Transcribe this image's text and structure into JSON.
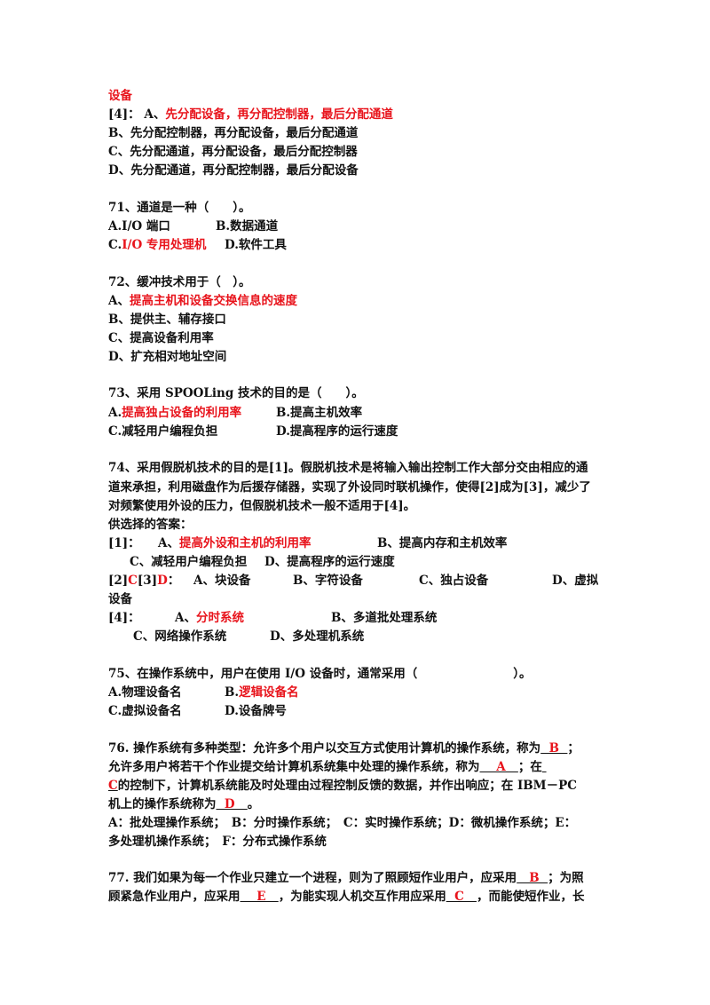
{
  "document": {
    "lines": [
      [
        {
          "t": "设备",
          "red": true
        }
      ],
      [
        {
          "t": "[4]：  A、"
        },
        {
          "t": "先分配设备，再分配控制器，最后分配通道",
          "red": true
        }
      ],
      [
        {
          "t": "B、先分配控制器，再分配设备，最后分配通道"
        }
      ],
      [
        {
          "t": "C、先分配通道，再分配设备，最后分配控制器"
        }
      ],
      [
        {
          "t": "D、先分配通道，再分配控制器，最后分配设备"
        }
      ],
      [
        {
          "t": "71、通道是一种（　　）。"
        }
      ],
      [
        {
          "t": "A.I/O 端口"
        },
        {
          "t": "B.数据通道"
        }
      ],
      [
        {
          "t": "C."
        },
        {
          "t": "I/O 专用处理机",
          "red": true
        },
        {
          "t": "D.软件工具"
        }
      ],
      [
        {
          "t": "72、缓冲技术用于（　）。"
        }
      ],
      [
        {
          "t": "A、"
        },
        {
          "t": "提高主机和设备交换信息的速度",
          "red": true
        }
      ],
      [
        {
          "t": "B、提供主、辅存接口"
        }
      ],
      [
        {
          "t": "C、提高设备利用率"
        }
      ],
      [
        {
          "t": "D、扩充相对地址空间"
        }
      ],
      [
        {
          "t": "73、采用 SPOOLing 技术的目的是（　　）。"
        }
      ],
      [
        {
          "t": "A."
        },
        {
          "t": "提高独占设备的利用率",
          "red": true
        },
        {
          "t": "B.提高主机效率"
        }
      ],
      [
        {
          "t": "C.减轻用户编程负担"
        },
        {
          "t": "D.提高程序的运行速度"
        }
      ],
      [
        {
          "t": "74、采用假脱机技术的目的是[1]。假脱机技术是将输入输出控制工作大部分交由相应的通"
        }
      ],
      [
        {
          "t": "道来承担，利用磁盘作为后援存储器，实现了外设同时联机操作，使得[2]成为[3]，减少了"
        }
      ],
      [
        {
          "t": "对频繁使用外设的压力，但假脱机技术一般不适用于[4]。"
        }
      ],
      [
        {
          "t": "供选择的答案："
        }
      ],
      [
        {
          "t": "[1]："
        },
        {
          "t": "A、"
        },
        {
          "t": "提高外设和主机的利用率",
          "red": true
        },
        {
          "t": "B、提高内存和主机效率"
        }
      ],
      [
        {
          "t": "C、减轻用户编程负担"
        },
        {
          "t": "D、提高程序的运行速度"
        }
      ],
      [
        {
          "t": "[2]"
        },
        {
          "t": "C",
          "red": true
        },
        {
          "t": "[3]"
        },
        {
          "t": "D",
          "red": true
        },
        {
          "t": "："
        },
        {
          "t": "A、块设备"
        },
        {
          "t": "B、字符设备"
        },
        {
          "t": "C、独占设备"
        },
        {
          "t": "D、虚拟"
        }
      ],
      [
        {
          "t": "设备"
        }
      ],
      [
        {
          "t": "[4]："
        },
        {
          "t": "A、"
        },
        {
          "t": "分时系统",
          "red": true
        },
        {
          "t": "B、多道批处理系统"
        }
      ],
      [
        {
          "t": "C、网络操作系统"
        },
        {
          "t": "D、多处理机系统"
        }
      ],
      [
        {
          "t": "75、在操作系统中，用户在使用 I/O 设备时，通常采用（　　　　　　　　）。"
        }
      ],
      [
        {
          "t": "A.物理设备名"
        },
        {
          "t": "B."
        },
        {
          "t": "逻辑设备名",
          "red": true
        }
      ],
      [
        {
          "t": "C.虚拟设备名"
        },
        {
          "t": "D.设备牌号"
        }
      ],
      [
        {
          "t": "76. 操作系统有多种类型：允许多个用户以交互方式使用计算机的操作系统，称为"
        },
        {
          "t": "  B  ",
          "blank": true
        },
        {
          "t": "；"
        }
      ],
      [
        {
          "t": "允许多用户将若干个作业提交给计算机系统集中处理的操作系统，称为"
        },
        {
          "t": "    A   ",
          "blank": true
        },
        {
          "t": "；在"
        },
        {
          "t": " ",
          "blank": true
        }
      ],
      [
        {
          "t": "C",
          "blank": true
        },
        {
          "t": "的控制下，计算机系统能及时处理由过程控制反馈的数据，并作出响应；在 IBM－PC"
        }
      ],
      [
        {
          "t": "机上的操作系统称为"
        },
        {
          "t": "  D   ",
          "blank": true
        },
        {
          "t": "。"
        }
      ],
      [
        {
          "t": "A：批处理操作系统；　B：分时操作系统；　C：实时操作系统；D：微机操作系统；E："
        }
      ],
      [
        {
          "t": "多处理机操作系统；　F：分布式操作系统"
        }
      ],
      [
        {
          "t": "77. 我们如果为每一个作业只建立一个进程，则为了照顾短作业用户，应采用"
        },
        {
          "t": "   B  ",
          "blank": true
        },
        {
          "t": "；为照"
        }
      ],
      [
        {
          "t": "顾紧急作业用户，应采用"
        },
        {
          "t": "    E   ",
          "blank": true
        },
        {
          "t": "，为能实现人机交互作用应采用"
        },
        {
          "t": "  C   ",
          "blank": true
        },
        {
          "t": "，而能使短作业，长"
        }
      ]
    ],
    "colors": {
      "text": "#111111",
      "answer": "#e8141c"
    }
  }
}
